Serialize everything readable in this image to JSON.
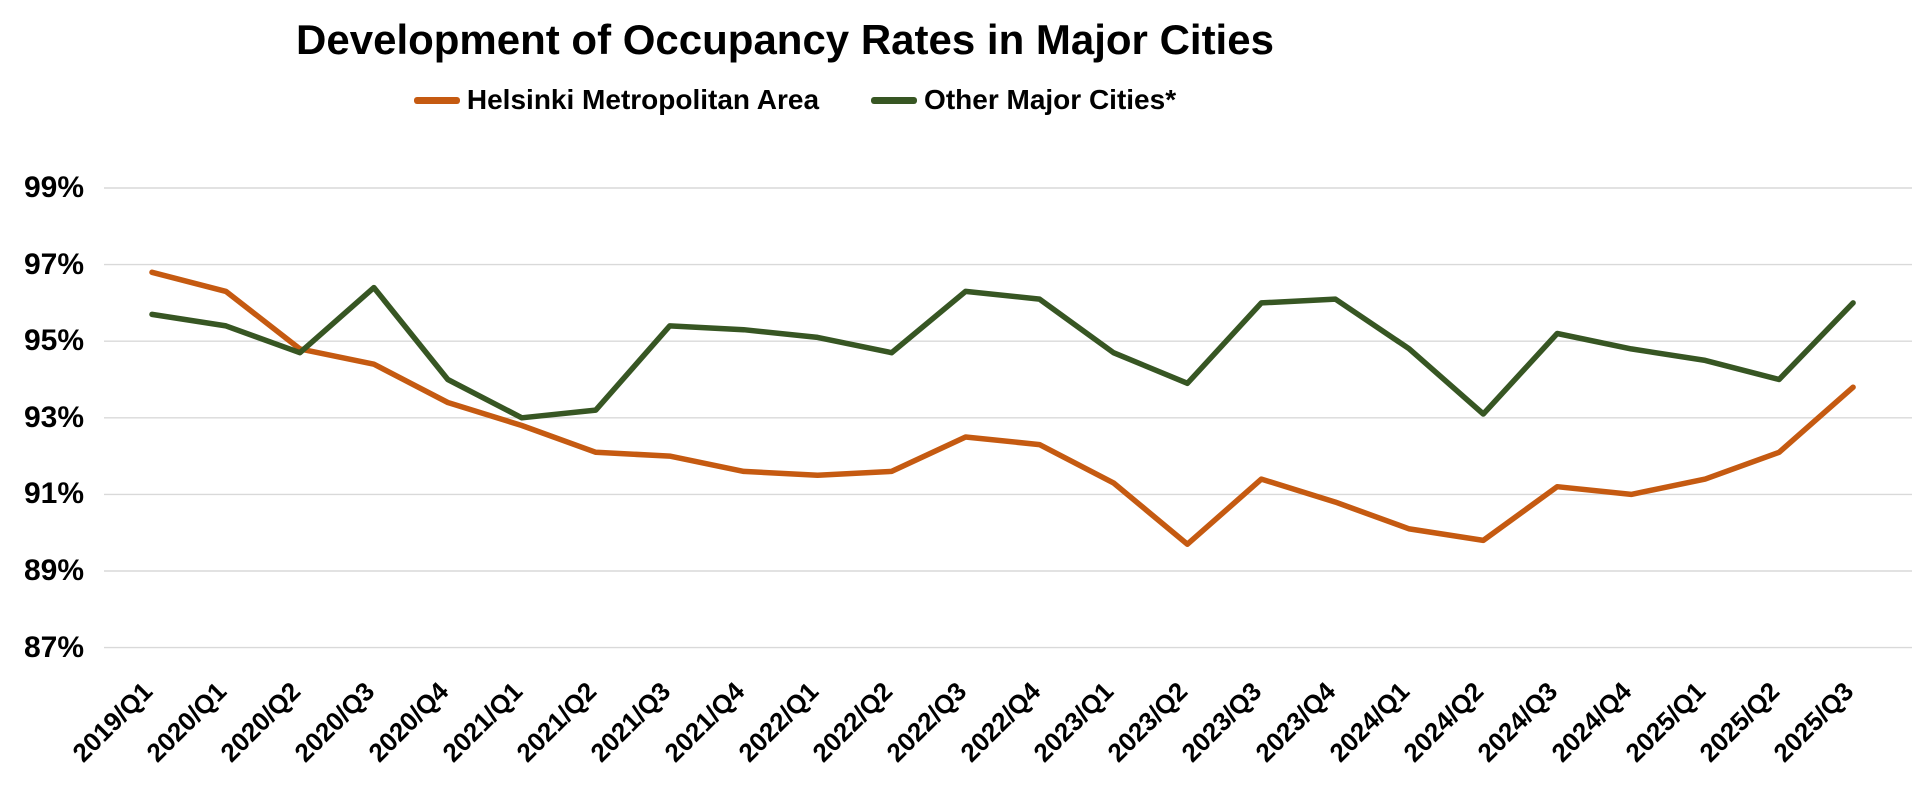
{
  "chart_data": {
    "type": "line",
    "title": "Development of Occupancy Rates in Major Cities",
    "categories": [
      "2019/Q1",
      "2020/Q1",
      "2020/Q2",
      "2020/Q3",
      "2020/Q4",
      "2021/Q1",
      "2021/Q2",
      "2021/Q3",
      "2021/Q4",
      "2022/Q1",
      "2022/Q2",
      "2022/Q3",
      "2022/Q4",
      "2023/Q1",
      "2023/Q2",
      "2023/Q3",
      "2023/Q4",
      "2024/Q1",
      "2024/Q2",
      "2024/Q3",
      "2024/Q4",
      "2025/Q1",
      "2025/Q2",
      "2025/Q3"
    ],
    "series": [
      {
        "name": "Helsinki Metropolitan Area",
        "color": "#C55A11",
        "values": [
          96.8,
          96.3,
          94.8,
          94.4,
          93.4,
          92.8,
          92.1,
          92.0,
          91.6,
          91.5,
          91.6,
          92.5,
          92.3,
          91.3,
          89.7,
          91.4,
          90.8,
          90.1,
          89.8,
          91.2,
          91.0,
          91.4,
          92.1,
          93.8
        ]
      },
      {
        "name": "Other Major Cities*",
        "color": "#375623",
        "values": [
          95.7,
          95.4,
          94.7,
          96.4,
          94.0,
          93.0,
          93.2,
          95.4,
          95.3,
          95.1,
          94.7,
          96.3,
          96.1,
          94.7,
          93.9,
          96.0,
          96.1,
          94.8,
          93.1,
          95.2,
          94.8,
          94.5,
          94.0,
          96.0
        ]
      }
    ],
    "xlabel": "",
    "ylabel": "",
    "ylim": [
      87,
      99
    ],
    "ytick_step": 2,
    "ytick_labels": [
      "99%",
      "97%",
      "95%",
      "93%",
      "91%",
      "89%",
      "87%"
    ],
    "grid": "horizontal",
    "legend_position": "top",
    "colors": {
      "gridline": "#D9D9D9",
      "background": "#FFFFFF",
      "text": "#000000"
    }
  }
}
